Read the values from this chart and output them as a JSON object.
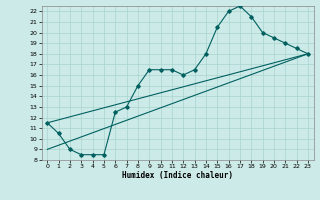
{
  "xlabel": "Humidex (Indice chaleur)",
  "xlim": [
    -0.5,
    23.5
  ],
  "ylim": [
    8,
    22.5
  ],
  "xticks": [
    0,
    1,
    2,
    3,
    4,
    5,
    6,
    7,
    8,
    9,
    10,
    11,
    12,
    13,
    14,
    15,
    16,
    17,
    18,
    19,
    20,
    21,
    22,
    23
  ],
  "yticks": [
    8,
    9,
    10,
    11,
    12,
    13,
    14,
    15,
    16,
    17,
    18,
    19,
    20,
    21,
    22
  ],
  "bg_color": "#cceae7",
  "grid_color": "#aad4d0",
  "line_color": "#006060",
  "line1_x": [
    0,
    1,
    2,
    3,
    4,
    5,
    6,
    7,
    8,
    9,
    10,
    11,
    12,
    13,
    14,
    15,
    16,
    17,
    18,
    19,
    20,
    21,
    22,
    23
  ],
  "line1_y": [
    11.5,
    10.5,
    9.0,
    8.5,
    8.5,
    8.5,
    12.5,
    13.0,
    15.0,
    16.5,
    16.5,
    16.5,
    16.0,
    16.5,
    18.0,
    20.5,
    22.0,
    22.5,
    21.5,
    20.0,
    19.5,
    19.0,
    18.5,
    18.0
  ],
  "line2_x": [
    0,
    23
  ],
  "line2_y": [
    11.5,
    18.0
  ],
  "line3_x": [
    0,
    23
  ],
  "line3_y": [
    9.0,
    18.0
  ]
}
